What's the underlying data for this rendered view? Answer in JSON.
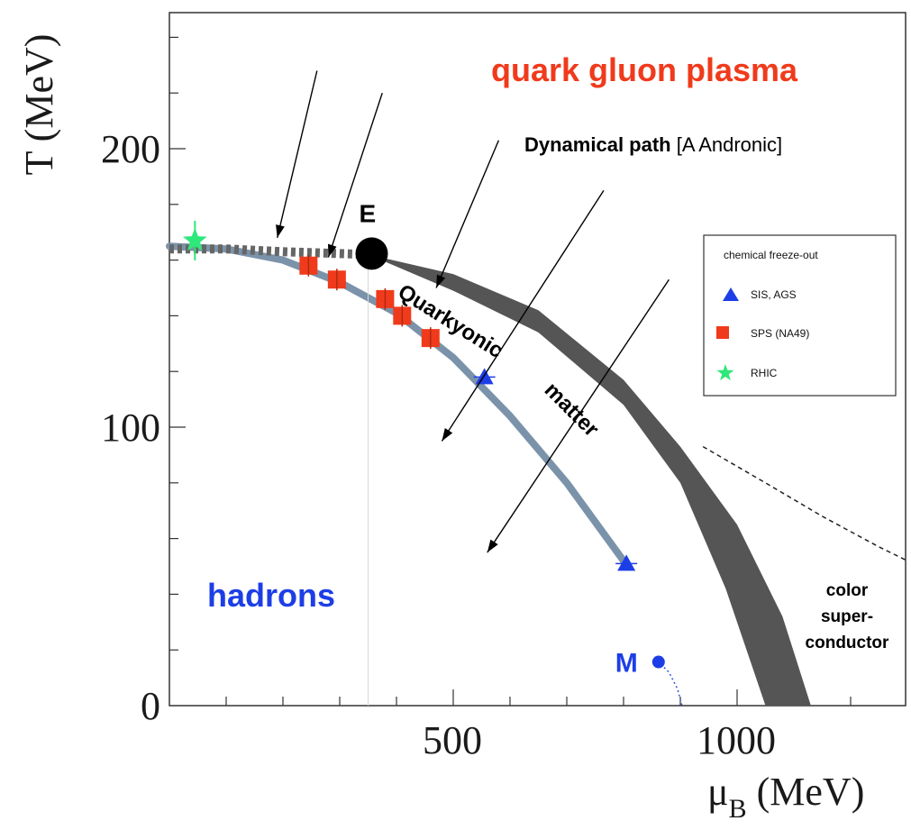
{
  "chart_data": {
    "type": "scatter",
    "title": "",
    "xlabel": "μ",
    "xlabel_sub": "B",
    "xlabel_unit": " (MeV)",
    "ylabel": "T (MeV)",
    "xlim": [
      0,
      1300
    ],
    "ylim": [
      0,
      250
    ],
    "x_ticks": [
      500,
      1000
    ],
    "y_ticks": [
      0,
      100,
      200
    ],
    "x_tick_labels": [
      "500",
      "1000"
    ],
    "y_tick_labels": [
      "0",
      "100",
      "200"
    ],
    "grid": false,
    "series": [
      {
        "name": "SIS, AGS",
        "marker": "triangle",
        "color": "#1d3ee6",
        "points": [
          {
            "x": 555,
            "y": 118
          },
          {
            "x": 805,
            "y": 51
          }
        ]
      },
      {
        "name": "SPS (NA49)",
        "marker": "square",
        "color": "#f03a1c",
        "points": [
          {
            "x": 245,
            "y": 158
          },
          {
            "x": 295,
            "y": 153
          },
          {
            "x": 380,
            "y": 146
          },
          {
            "x": 410,
            "y": 140
          },
          {
            "x": 460,
            "y": 132
          }
        ]
      },
      {
        "name": "RHIC",
        "marker": "star",
        "color": "#2ee87a",
        "points": [
          {
            "x": 45,
            "y": 167
          }
        ]
      }
    ],
    "curves": [
      {
        "name": "freeze-out curve",
        "color": "#7b93aa",
        "x": [
          0,
          100,
          200,
          300,
          400,
          500,
          600,
          700,
          800
        ],
        "y": [
          165,
          164,
          160,
          152,
          141,
          125,
          104,
          80,
          52
        ]
      },
      {
        "name": "crossover (dashed)",
        "color": "#666666",
        "x": [
          0,
          100,
          200,
          350
        ],
        "y": [
          164,
          164,
          163,
          162
        ]
      },
      {
        "name": "transition band upper",
        "color": "#555555",
        "x": [
          350,
          500,
          650,
          800,
          900,
          1000,
          1080,
          1130
        ],
        "y": [
          162,
          155,
          142,
          117,
          93,
          65,
          32,
          0
        ]
      },
      {
        "name": "transition band lower",
        "color": "#555555",
        "x": [
          350,
          500,
          650,
          800,
          900,
          980,
          1050
        ],
        "y": [
          162,
          149,
          134,
          108,
          80,
          42,
          0
        ]
      },
      {
        "name": "color superconductor boundary",
        "color": "#222222",
        "x": [
          940,
          1050,
          1150,
          1250,
          1300
        ],
        "y": [
          93,
          80,
          68,
          57,
          52
        ]
      },
      {
        "name": "nuclear matter line",
        "color": "#3355dd",
        "x": [
          860,
          880,
          895,
          903
        ],
        "y": [
          16,
          12,
          6,
          0
        ]
      }
    ],
    "points": {
      "E": {
        "label": "E",
        "x": 350,
        "y": 163
      },
      "M": {
        "label": "M",
        "x": 860,
        "y": 16
      }
    },
    "legend": {
      "title": "chemical freeze-out",
      "position": "right",
      "entries": [
        "SIS, AGS",
        "SPS (NA49)",
        "RHIC"
      ]
    },
    "regions": {
      "qgp": {
        "text": "quark gluon plasma",
        "color": "#f03a1c"
      },
      "hadrons": {
        "text": "hadrons",
        "color": "#1d3ee6"
      },
      "quarkyonic_1": "Quarkyonic",
      "quarkyonic_2": "matter",
      "csc_1": "color",
      "csc_2": "super-",
      "csc_3": "conductor"
    },
    "annotation": {
      "bold": "Dynamical path",
      "normal": " [A Andronic]"
    },
    "arrows": [
      {
        "from": [
          260,
          228
        ],
        "to": [
          190,
          168
        ]
      },
      {
        "from": [
          375,
          220
        ],
        "to": [
          280,
          161
        ]
      },
      {
        "from": [
          580,
          203
        ],
        "to": [
          470,
          150
        ]
      },
      {
        "from": [
          765,
          185
        ],
        "to": [
          480,
          95
        ]
      },
      {
        "from": [
          880,
          153
        ],
        "to": [
          560,
          55
        ]
      }
    ]
  }
}
